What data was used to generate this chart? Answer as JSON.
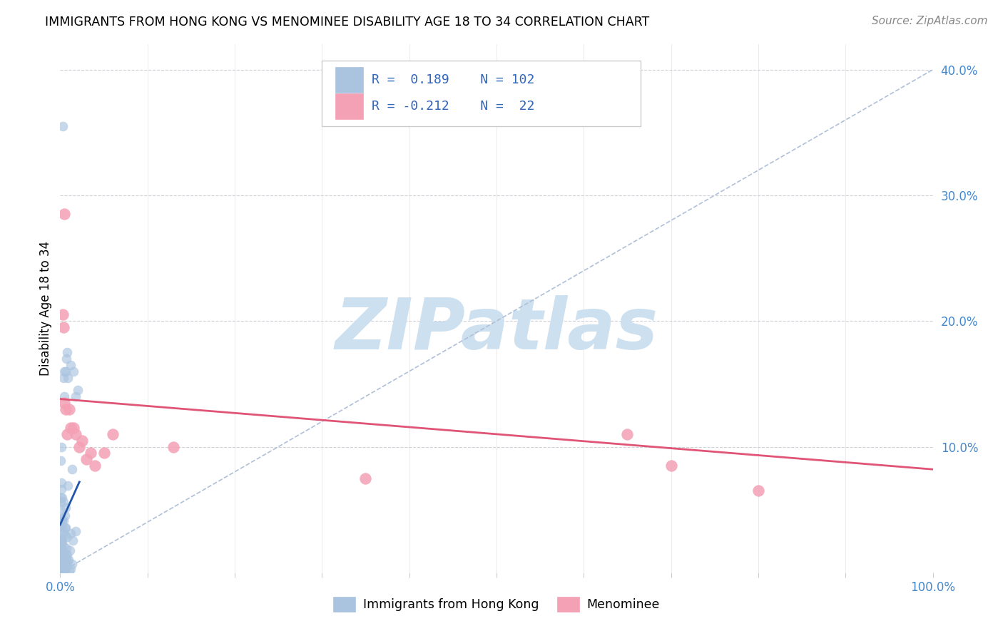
{
  "title": "IMMIGRANTS FROM HONG KONG VS MENOMINEE DISABILITY AGE 18 TO 34 CORRELATION CHART",
  "source": "Source: ZipAtlas.com",
  "ylabel": "Disability Age 18 to 34",
  "xmin": 0.0,
  "xmax": 1.0,
  "ymin": 0.0,
  "ymax": 0.42,
  "blue_R": 0.189,
  "blue_N": 102,
  "pink_R": -0.212,
  "pink_N": 22,
  "blue_color": "#aac4e0",
  "pink_color": "#f4a0b5",
  "blue_line_color": "#2255aa",
  "pink_line_color": "#e05575",
  "diag_line_color": "#b0c0d8",
  "watermark_color": "#cce0f0",
  "legend_label_blue": "Immigrants from Hong Kong",
  "legend_label_pink": "Menominee",
  "blue_scatter_seed": 42,
  "pink_scatter_x": [
    0.003,
    0.004,
    0.005,
    0.006,
    0.008,
    0.01,
    0.012,
    0.015,
    0.018,
    0.022,
    0.025,
    0.03,
    0.035,
    0.04,
    0.05,
    0.06,
    0.13,
    0.35,
    0.65,
    0.7,
    0.8,
    0.005
  ],
  "pink_scatter_y": [
    0.205,
    0.195,
    0.135,
    0.13,
    0.11,
    0.13,
    0.115,
    0.115,
    0.11,
    0.1,
    0.105,
    0.09,
    0.095,
    0.085,
    0.095,
    0.11,
    0.1,
    0.075,
    0.11,
    0.085,
    0.065,
    0.285
  ],
  "pink_trend_x": [
    0.0,
    1.0
  ],
  "pink_trend_y": [
    0.138,
    0.082
  ],
  "blue_trend_x": [
    0.0,
    0.022
  ],
  "blue_trend_y": [
    0.038,
    0.072
  ]
}
